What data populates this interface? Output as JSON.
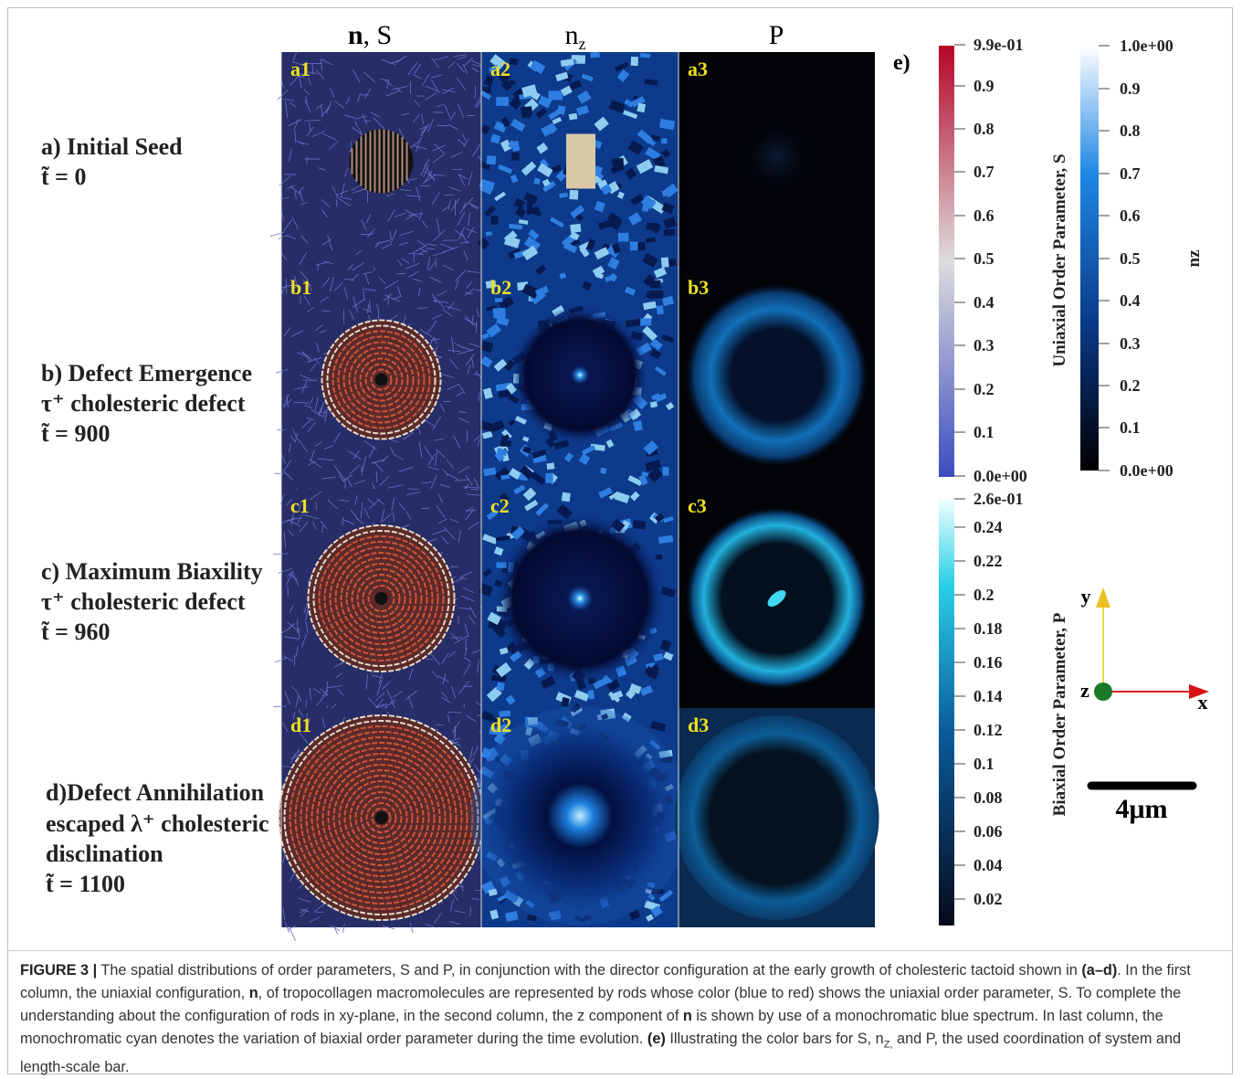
{
  "column_headers": [
    [
      "n",
      ", S"
    ],
    [
      "n",
      "z"
    ],
    [
      "P"
    ]
  ],
  "rows": [
    {
      "label_lines": [
        "a) Initial Seed",
        "t̃ = 0"
      ],
      "panels": [
        "a1",
        "a2",
        "a3"
      ]
    },
    {
      "label_lines": [
        "b) Defect Emergence",
        "τ⁺ cholesteric defect",
        "t̃ = 900"
      ],
      "panels": [
        "b1",
        "b2",
        "b3"
      ]
    },
    {
      "label_lines": [
        "c) Maximum Biaxility",
        "τ⁺ cholesteric defect",
        "t̃ = 960"
      ],
      "panels": [
        "c1",
        "c2",
        "c3"
      ]
    },
    {
      "label_lines": [
        "d)Defect Annihilation",
        "escaped λ⁺ cholesteric",
        "disclination",
        "t̃ = 1100"
      ],
      "panels": [
        "d1",
        "d2",
        "d3"
      ]
    }
  ],
  "panel_e_label": "e)",
  "colorbars": [
    {
      "title": "Uniaxial Order Parameter, S",
      "ticks": [
        "9.9e-01",
        "0.9",
        "0.8",
        "0.7",
        "0.6",
        "0.5",
        "0.4",
        "0.3",
        "0.2",
        "0.1",
        "0.0e+00"
      ]
    },
    {
      "title": "nz",
      "ticks": [
        "1.0e+00",
        "0.9",
        "0.8",
        "0.7",
        "0.6",
        "0.5",
        "0.4",
        "0.3",
        "0.2",
        "0.1",
        "0.0e+00"
      ]
    },
    {
      "title": "Biaxial Order Parameter, P",
      "ticks": [
        "2.6e-01",
        "0.24",
        "0.22",
        "0.2",
        "0.18",
        "0.16",
        "0.14",
        "0.12",
        "0.1",
        "0.08",
        "0.06",
        "0.04",
        "0.02"
      ]
    }
  ],
  "axes": {
    "x": "x",
    "y": "y",
    "z": "z"
  },
  "scale_bar": "4μm",
  "caption": [
    "FIGURE 3 |",
    " The spatial distributions of order parameters, S and P, in conjunction with the director configuration at the early growth of cholesteric tactoid shown in ",
    "(a–d)",
    ". In the first column, the uniaxial configuration, ",
    "n",
    ", of tropocollagen macromolecules are represented by rods whose color (blue to red) shows the uniaxial order parameter, S. To complete the understanding about the configuration of rods in xy-plane, in the second column, the z component of ",
    "n",
    " is shown by use of a monochromatic blue spectrum. In last column, the monochromatic cyan denotes the variation of biaxial order parameter during the time evolution. ",
    "(e)",
    " Illustrating the color bars for S, n",
    "Z,",
    " and P, the used coordination of system and length-scale bar."
  ]
}
